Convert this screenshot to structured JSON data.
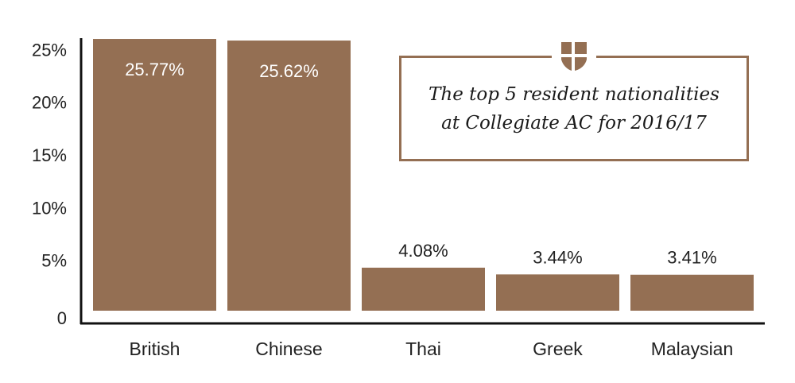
{
  "chart_data": {
    "type": "bar",
    "title": "The top 5 resident nationalities at Collegiate AC for 2016/17",
    "title_lines": [
      "The top 5 resident nationalities",
      "at Collegiate AC for 2016/17"
    ],
    "categories": [
      "British",
      "Chinese",
      "Thai",
      "Greek",
      "Malaysian"
    ],
    "values": [
      25.77,
      25.62,
      4.08,
      3.44,
      3.41
    ],
    "data_labels": [
      "25.77%",
      "25.62%",
      "4.08%",
      "3.44%",
      "3.41%"
    ],
    "y_ticks": [
      "0",
      "5%",
      "10%",
      "15%",
      "20%",
      "25%"
    ],
    "y_tick_values": [
      0,
      5,
      10,
      15,
      20,
      25
    ],
    "ylim": [
      0,
      26
    ],
    "xlabel": "",
    "ylabel": "",
    "grid": false,
    "legend": "none",
    "bar_color": "#946f53",
    "inside_label_color": "#ffffff",
    "outside_label_color": "#222222"
  },
  "crest_icon": "shield-crest-icon"
}
